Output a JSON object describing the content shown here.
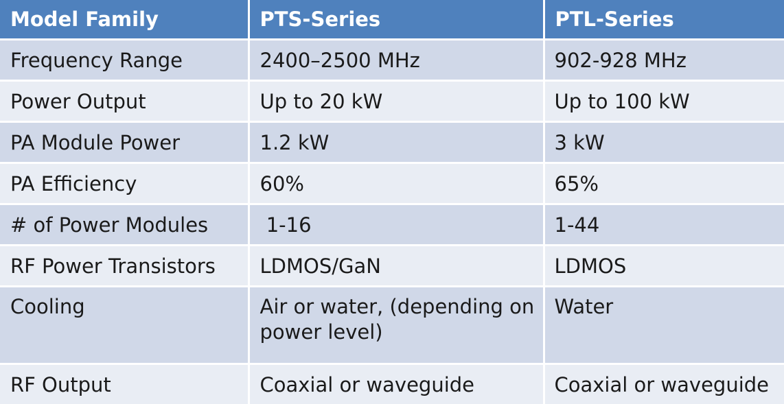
{
  "table": {
    "headers": [
      "Model Family",
      "PTS-Series",
      "PTL-Series"
    ],
    "rows": [
      {
        "label": "Frequency Range",
        "pts": "2400–2500 MHz",
        "ptl": "902-928 MHz"
      },
      {
        "label": "Power Output",
        "pts": "Up to 20 kW",
        "ptl": "Up to 100 kW"
      },
      {
        "label": "PA Module Power",
        "pts": "1.2 kW",
        "ptl": "3 kW"
      },
      {
        "label": "PA Efficiency",
        "pts": "60%",
        "ptl": "65%"
      },
      {
        "label": "# of Power Modules",
        "pts": " 1-16",
        "ptl": "1-44"
      },
      {
        "label": "RF Power Transistors",
        "pts": "LDMOS/GaN",
        "ptl": "LDMOS"
      },
      {
        "label": "Cooling",
        "pts": "Air or water, (depending on power level)",
        "ptl": "Water"
      },
      {
        "label": "RF Output",
        "pts": "Coaxial or waveguide",
        "ptl": "Coaxial or waveguide"
      }
    ]
  },
  "colors": {
    "header_bg": "#4f81bd",
    "header_text": "#ffffff",
    "row_odd": "#d0d8e8",
    "row_even": "#e9edf4"
  }
}
